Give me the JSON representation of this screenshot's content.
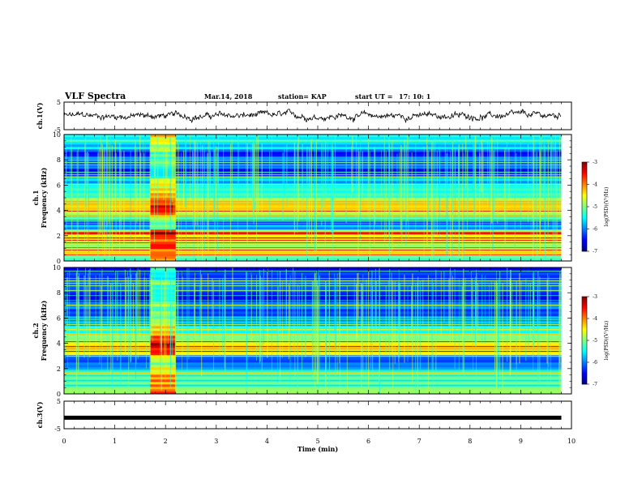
{
  "header": {
    "title": "VLF Spectra",
    "date": "Mar.14, 2018",
    "station": "station= KAP",
    "start_label": "start UT =",
    "start_time": "17: 10: 1"
  },
  "chart_data": [
    {
      "type": "line",
      "ylabel": "ch.1(V)",
      "ylim": [
        -5,
        5
      ],
      "yticks": [
        "5",
        "-5"
      ],
      "xlim": [
        0,
        10
      ],
      "series": [
        {
          "x_range": [
            0,
            9.8
          ],
          "mean_level": 0,
          "amplitude_approx": 1.5
        }
      ],
      "color": "#000000"
    },
    {
      "type": "heatmap",
      "ylabel": "ch.1\nFrequency (kHz)",
      "ylim": [
        0,
        10
      ],
      "yticks": [
        "0",
        "2",
        "4",
        "6",
        "8",
        "10"
      ],
      "xlim": [
        0,
        10
      ],
      "data_x_range": [
        0,
        9.8
      ],
      "colorbar": {
        "label": "log(PSD)(V²/Hz)",
        "range": [
          -7,
          -3
        ],
        "ticks": [
          "-3",
          "-4",
          "-5",
          "-6",
          "-7"
        ]
      },
      "profile": [
        {
          "f": 0.2,
          "v": -5.2
        },
        {
          "f": 0.6,
          "v": -4.4
        },
        {
          "f": 1.0,
          "v": -4.8
        },
        {
          "f": 1.5,
          "v": -4.6
        },
        {
          "f": 2.0,
          "v": -4.5
        },
        {
          "f": 2.2,
          "v": -3.4
        },
        {
          "f": 2.5,
          "v": -5.6
        },
        {
          "f": 3.0,
          "v": -6.1
        },
        {
          "f": 3.5,
          "v": -5.2
        },
        {
          "f": 4.0,
          "v": -4.6
        },
        {
          "f": 4.5,
          "v": -4.5
        },
        {
          "f": 5.0,
          "v": -5.1
        },
        {
          "f": 5.5,
          "v": -5.4
        },
        {
          "f": 6.0,
          "v": -5.6
        },
        {
          "f": 6.5,
          "v": -5.9
        },
        {
          "f": 7.0,
          "v": -6.5
        },
        {
          "f": 7.5,
          "v": -6.2
        },
        {
          "f": 8.0,
          "v": -5.9
        },
        {
          "f": 8.5,
          "v": -6.3
        },
        {
          "f": 9.0,
          "v": -5.7
        },
        {
          "f": 9.5,
          "v": -5.5
        },
        {
          "f": 10.0,
          "v": -5.4
        }
      ],
      "bursts": [
        {
          "t_start": 1.7,
          "t_end": 2.2,
          "delta_v": 0.9
        }
      ]
    },
    {
      "type": "heatmap",
      "ylabel": "ch.2\nFrequency (kHz)",
      "ylim": [
        0,
        10
      ],
      "yticks": [
        "0",
        "2",
        "4",
        "6",
        "8",
        "10"
      ],
      "xlim": [
        0,
        10
      ],
      "data_x_range": [
        0,
        9.8
      ],
      "colorbar": {
        "label": "log(PSD)(V²/Hz)",
        "range": [
          -7,
          -3
        ],
        "ticks": [
          "-3",
          "-4",
          "-5",
          "-6",
          "-7"
        ]
      },
      "profile": [
        {
          "f": 0.2,
          "v": -5.0
        },
        {
          "f": 0.8,
          "v": -5.2
        },
        {
          "f": 1.5,
          "v": -5.3
        },
        {
          "f": 2.0,
          "v": -5.6
        },
        {
          "f": 2.5,
          "v": -6.0
        },
        {
          "f": 3.0,
          "v": -5.8
        },
        {
          "f": 3.2,
          "v": -4.2
        },
        {
          "f": 3.5,
          "v": -4.6
        },
        {
          "f": 4.0,
          "v": -4.4
        },
        {
          "f": 4.5,
          "v": -4.9
        },
        {
          "f": 5.0,
          "v": -5.4
        },
        {
          "f": 5.5,
          "v": -5.8
        },
        {
          "f": 6.0,
          "v": -6.0
        },
        {
          "f": 6.5,
          "v": -6.2
        },
        {
          "f": 7.0,
          "v": -6.1
        },
        {
          "f": 7.5,
          "v": -6.3
        },
        {
          "f": 8.0,
          "v": -6.4
        },
        {
          "f": 8.5,
          "v": -6.2
        },
        {
          "f": 9.0,
          "v": -6.3
        },
        {
          "f": 9.5,
          "v": -6.4
        },
        {
          "f": 10.0,
          "v": -6.3
        }
      ],
      "bursts": [
        {
          "t_start": 1.7,
          "t_end": 2.2,
          "delta_v": 1.1
        }
      ]
    },
    {
      "type": "line",
      "ylabel": "ch.3(V)",
      "ylim": [
        -5,
        5
      ],
      "yticks": [
        "5",
        "-5"
      ],
      "xlim": [
        0,
        10
      ],
      "series": [
        {
          "x_range": [
            0,
            9.8
          ],
          "mean_level": -1,
          "amplitude_approx": 0
        }
      ],
      "color": "#000000"
    }
  ],
  "x_axis": {
    "xlabel": "Time (min)",
    "ticks": [
      "0",
      "1",
      "2",
      "3",
      "4",
      "5",
      "6",
      "7",
      "8",
      "9",
      "10"
    ]
  }
}
